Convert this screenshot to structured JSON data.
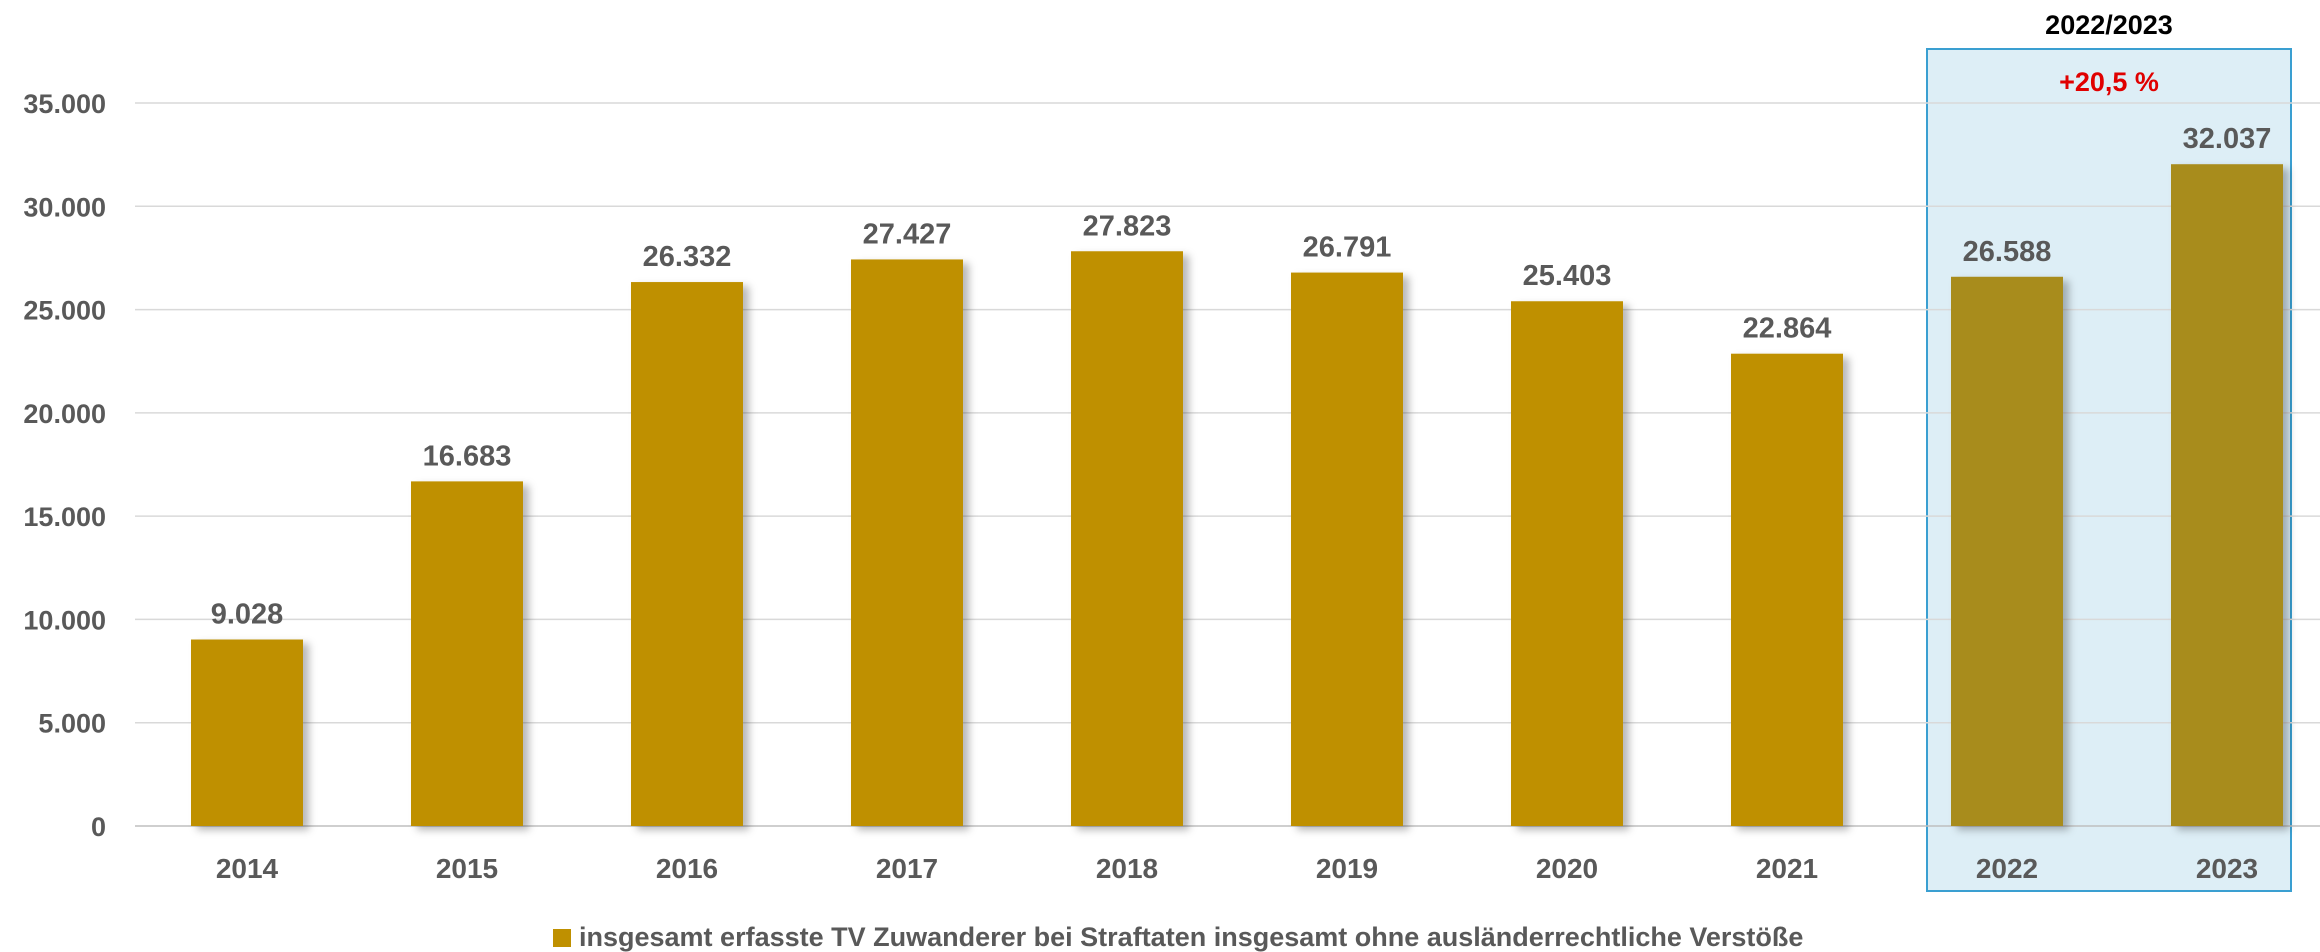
{
  "chart_data": {
    "type": "bar",
    "categories": [
      "2014",
      "2015",
      "2016",
      "2017",
      "2018",
      "2019",
      "2020",
      "2021",
      "2022",
      "2023"
    ],
    "series": [
      {
        "name": "insgesamt erfasste TV Zuwanderer bei Straftaten insgesamt ohne ausländerrechtliche Verstöße",
        "values": [
          9028,
          16683,
          26332,
          27427,
          27823,
          26791,
          25403,
          22864,
          26588,
          32037
        ],
        "data_labels": [
          "9.028",
          "16.683",
          "26.332",
          "27.427",
          "27.823",
          "26.791",
          "25.403",
          "22.864",
          "26.588",
          "32.037"
        ]
      }
    ],
    "ylim": [
      0,
      35000
    ],
    "yticks": [
      0,
      5000,
      10000,
      15000,
      20000,
      25000,
      30000,
      35000
    ],
    "ytick_labels": [
      "0",
      "5.000",
      "10.000",
      "15.000",
      "20.000",
      "25.000",
      "30.000",
      "35.000"
    ],
    "grid": true,
    "legend_position": "bottom",
    "highlight": {
      "categories": [
        "2022",
        "2023"
      ],
      "title": "2022/2023",
      "change_label": "+20,5 %"
    },
    "colors": {
      "bar": "#BF9000",
      "bar_highlight": "#A88C1E",
      "highlight_fill": "#DDEEF6",
      "highlight_border": "#3A9FD1",
      "change_text": "#E00000",
      "gridline": "#D9D9D9",
      "axis_line": "#BFBFBF"
    }
  }
}
